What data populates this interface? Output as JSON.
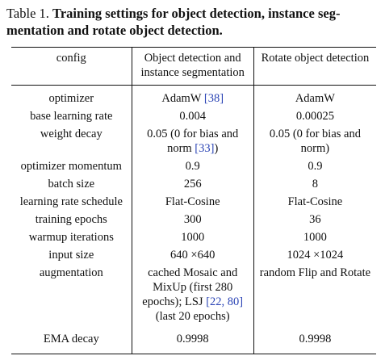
{
  "caption": {
    "label": "Table 1.",
    "title": "Training settings for object detection, instance seg-mentation and rotate object detection."
  },
  "table": {
    "headers": [
      "config",
      "Object detection and instance segmentation",
      "Rotate object detection"
    ],
    "rows": [
      {
        "config": "optimizer",
        "a": [
          "AdamW ",
          "[38]",
          ""
        ],
        "b": [
          "AdamW",
          "",
          ""
        ]
      },
      {
        "config": "base learning rate",
        "a": [
          "0.004",
          "",
          ""
        ],
        "b": [
          "0.00025",
          "",
          ""
        ]
      },
      {
        "config": "weight decay",
        "a": [
          "0.05 (0 for bias and norm ",
          "[33]",
          ")"
        ],
        "b": [
          "0.05 (0 for bias and norm)",
          "",
          ""
        ]
      },
      {
        "config": "optimizer momentum",
        "a": [
          "0.9",
          "",
          ""
        ],
        "b": [
          "0.9",
          "",
          ""
        ]
      },
      {
        "config": "batch size",
        "a": [
          "256",
          "",
          ""
        ],
        "b": [
          "8",
          "",
          ""
        ]
      },
      {
        "config": "learning rate schedule",
        "a": [
          "Flat-Cosine",
          "",
          ""
        ],
        "b": [
          "Flat-Cosine",
          "",
          ""
        ]
      },
      {
        "config": "training epochs",
        "a": [
          "300",
          "",
          ""
        ],
        "b": [
          "36",
          "",
          ""
        ]
      },
      {
        "config": "warmup iterations",
        "a": [
          "1000",
          "",
          ""
        ],
        "b": [
          "1000",
          "",
          ""
        ]
      },
      {
        "config": "input size",
        "a": [
          "640 ×640",
          "",
          ""
        ],
        "b": [
          "1024 ×1024",
          "",
          ""
        ]
      },
      {
        "config": "augmentation",
        "a": [
          "cached Mosaic and MixUp (first 280 epochs); LSJ ",
          "[22, 80]",
          " (last 20 epochs)"
        ],
        "b": [
          "random Flip and Rotate",
          "",
          ""
        ]
      },
      {
        "config": "EMA decay",
        "a": [
          "0.9998",
          "",
          ""
        ],
        "b": [
          "0.9998",
          "",
          ""
        ]
      }
    ]
  }
}
